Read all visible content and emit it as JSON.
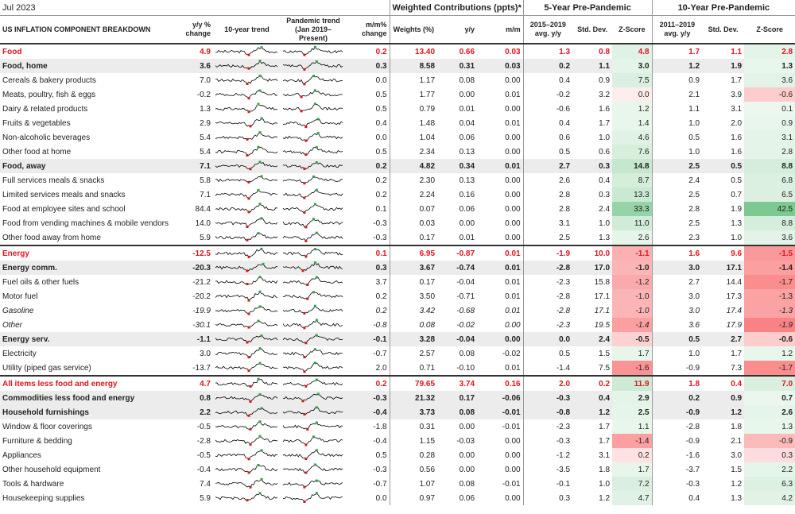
{
  "title": "Jul 2023",
  "groups": {
    "weighted": "Weighted Contributions (ppts)*",
    "five_year": "5-Year Pre-Pandemic",
    "ten_year": "10-Year Pre-Pandemic"
  },
  "headers": {
    "component": "US INFLATION COMPONENT BREAKDOWN",
    "yy": "y/y % change",
    "trend10": "10-year trend",
    "pandemic": "Pandemic trend (Jan 2019–Present)",
    "mm": "m/m% change",
    "weights": "Weights (%)",
    "contrib_yy": "y/y",
    "contrib_mm": "m/m",
    "avg5": "2015–2019 avg. y/y",
    "sd5": "Std. Dev.",
    "z5": "Z-Score",
    "avg10": "2011–2019 avg. y/y",
    "sd10": "Std. Dev.",
    "z10": "Z-Score"
  },
  "rows": [
    {
      "label": "Food",
      "style": "red",
      "yy": "4.9",
      "mm": "0.2",
      "wt": "13.40",
      "cy": "0.66",
      "cm": "0.03",
      "avg5": "1.3",
      "sd5": "0.8",
      "z5": "4.8",
      "avg10": "1.7",
      "sd10": "1.1",
      "z10": "2.8",
      "zs5": "pos",
      "zs10": "pos"
    },
    {
      "label": "Food, home",
      "style": "bold grey",
      "yy": "3.6",
      "mm": "0.3",
      "wt": "8.58",
      "cy": "0.31",
      "cm": "0.03",
      "avg5": "0.2",
      "sd5": "1.1",
      "z5": "3.0",
      "avg10": "1.2",
      "sd10": "1.9",
      "z10": "1.3",
      "zs5": "pos",
      "zs10": "pos"
    },
    {
      "label": "Cereals & bakery products",
      "style": "",
      "yy": "7.0",
      "mm": "0.0",
      "wt": "1.17",
      "cy": "0.08",
      "cm": "0.00",
      "avg5": "0.4",
      "sd5": "0.9",
      "z5": "7.5",
      "avg10": "0.9",
      "sd10": "1.7",
      "z10": "3.6",
      "zs5": "pos",
      "zs10": "pos"
    },
    {
      "label": "Meats, poultry, fish & eggs",
      "style": "",
      "yy": "-0.2",
      "mm": "0.5",
      "wt": "1.77",
      "cy": "0.00",
      "cm": "0.01",
      "avg5": "-0.2",
      "sd5": "3.2",
      "z5": "0.0",
      "avg10": "2.1",
      "sd10": "3.9",
      "z10": "-0.6",
      "zs5": "neg",
      "zs10": "neg"
    },
    {
      "label": "Dairy & related products",
      "style": "",
      "yy": "1.3",
      "mm": "0.5",
      "wt": "0.79",
      "cy": "0.01",
      "cm": "0.00",
      "avg5": "-0.6",
      "sd5": "1.6",
      "z5": "1.2",
      "avg10": "1.1",
      "sd10": "3.1",
      "z10": "0.1",
      "zs5": "pos",
      "zs10": "pos"
    },
    {
      "label": "Fruits & vegetables",
      "style": "",
      "yy": "2.9",
      "mm": "0.4",
      "wt": "1.48",
      "cy": "0.04",
      "cm": "0.01",
      "avg5": "0.4",
      "sd5": "1.7",
      "z5": "1.4",
      "avg10": "1.0",
      "sd10": "2.0",
      "z10": "0.9",
      "zs5": "pos",
      "zs10": "pos"
    },
    {
      "label": "Non-alcoholic beverages",
      "style": "",
      "yy": "5.4",
      "mm": "0.0",
      "wt": "1.04",
      "cy": "0.06",
      "cm": "0.00",
      "avg5": "0.6",
      "sd5": "1.0",
      "z5": "4.6",
      "avg10": "0.5",
      "sd10": "1.6",
      "z10": "3.1",
      "zs5": "pos",
      "zs10": "pos"
    },
    {
      "label": "Other food at home",
      "style": "",
      "yy": "5.4",
      "mm": "0.5",
      "wt": "2.34",
      "cy": "0.13",
      "cm": "0.00",
      "avg5": "0.5",
      "sd5": "0.6",
      "z5": "7.6",
      "avg10": "1.0",
      "sd10": "1.6",
      "z10": "2.8",
      "zs5": "pos",
      "zs10": "pos"
    },
    {
      "label": "Food, away",
      "style": "bold grey",
      "yy": "7.1",
      "mm": "0.2",
      "wt": "4.82",
      "cy": "0.34",
      "cm": "0.01",
      "avg5": "2.7",
      "sd5": "0.3",
      "z5": "14.8",
      "avg10": "2.5",
      "sd10": "0.5",
      "z10": "8.8",
      "zs5": "pos",
      "zs10": "pos"
    },
    {
      "label": "Full services meals & snacks",
      "style": "",
      "yy": "5.8",
      "mm": "0.2",
      "wt": "2.30",
      "cy": "0.13",
      "cm": "0.00",
      "avg5": "2.6",
      "sd5": "0.4",
      "z5": "8.7",
      "avg10": "2.4",
      "sd10": "0.5",
      "z10": "6.8",
      "zs5": "pos",
      "zs10": "pos"
    },
    {
      "label": "Limited services meals and snacks",
      "style": "",
      "yy": "7.1",
      "mm": "0.2",
      "wt": "2.24",
      "cy": "0.16",
      "cm": "0.00",
      "avg5": "2.8",
      "sd5": "0.3",
      "z5": "13.3",
      "avg10": "2.5",
      "sd10": "0.7",
      "z10": "6.5",
      "zs5": "pos",
      "zs10": "pos"
    },
    {
      "label": "Food at employee sites and school",
      "style": "",
      "yy": "84.4",
      "mm": "0.1",
      "wt": "0.07",
      "cy": "0.06",
      "cm": "0.00",
      "avg5": "2.8",
      "sd5": "2.4",
      "z5": "33.3",
      "avg10": "2.8",
      "sd10": "1.9",
      "z10": "42.5",
      "zs5": "pos",
      "zs10": "pos"
    },
    {
      "label": "Food from vending machines & mobile vendors",
      "style": "",
      "yy": "14.0",
      "mm": "-0.3",
      "wt": "0.03",
      "cy": "0.00",
      "cm": "0.00",
      "avg5": "3.1",
      "sd5": "1.0",
      "z5": "11.0",
      "avg10": "2.5",
      "sd10": "1.3",
      "z10": "8.8",
      "zs5": "pos",
      "zs10": "pos"
    },
    {
      "label": "Other food away from home",
      "style": "",
      "yy": "5.9",
      "mm": "-0.3",
      "wt": "0.17",
      "cy": "0.01",
      "cm": "0.00",
      "avg5": "2.5",
      "sd5": "1.3",
      "z5": "2.6",
      "avg10": "2.3",
      "sd10": "1.0",
      "z10": "3.6",
      "zs5": "pos",
      "zs10": "pos"
    },
    {
      "label": "Energy",
      "style": "red sec",
      "yy": "-12.5",
      "mm": "0.1",
      "wt": "6.95",
      "cy": "-0.87",
      "cm": "0.01",
      "avg5": "-1.9",
      "sd5": "10.0",
      "z5": "-1.1",
      "avg10": "1.6",
      "sd10": "9.6",
      "z10": "-1.5",
      "zs5": "neg",
      "zs10": "neg"
    },
    {
      "label": "Energy comm.",
      "style": "bold grey",
      "yy": "-20.3",
      "mm": "0.3",
      "wt": "3.67",
      "cy": "-0.74",
      "cm": "0.01",
      "avg5": "-2.8",
      "sd5": "17.0",
      "z5": "-1.0",
      "avg10": "3.0",
      "sd10": "17.1",
      "z10": "-1.4",
      "zs5": "neg",
      "zs10": "neg"
    },
    {
      "label": "Fuel oils & other fuels",
      "style": "",
      "yy": "-21.2",
      "mm": "3.7",
      "wt": "0.17",
      "cy": "-0.04",
      "cm": "0.01",
      "avg5": "-2.3",
      "sd5": "15.8",
      "z5": "-1.2",
      "avg10": "2.7",
      "sd10": "14.4",
      "z10": "-1.7",
      "zs5": "neg",
      "zs10": "neg"
    },
    {
      "label": "Motor fuel",
      "style": "",
      "yy": "-20.2",
      "mm": "0.2",
      "wt": "3.50",
      "cy": "-0.71",
      "cm": "0.01",
      "avg5": "-2.8",
      "sd5": "17.1",
      "z5": "-1.0",
      "avg10": "3.0",
      "sd10": "17.3",
      "z10": "-1.3",
      "zs5": "neg",
      "zs10": "neg"
    },
    {
      "label": "Gasoline",
      "style": "italic",
      "yy": "-19.9",
      "mm": "0.2",
      "wt": "3.42",
      "cy": "-0.68",
      "cm": "0.01",
      "avg5": "-2.8",
      "sd5": "17.1",
      "z5": "-1.0",
      "avg10": "3.0",
      "sd10": "17.4",
      "z10": "-1.3",
      "zs5": "neg",
      "zs10": "neg"
    },
    {
      "label": "Other",
      "style": "italic",
      "yy": "-30.1",
      "mm": "-0.8",
      "wt": "0.08",
      "cy": "-0.02",
      "cm": "0.00",
      "avg5": "-2.3",
      "sd5": "19.5",
      "z5": "-1.4",
      "avg10": "3.6",
      "sd10": "17.9",
      "z10": "-1.9",
      "zs5": "neg",
      "zs10": "neg"
    },
    {
      "label": "Energy serv.",
      "style": "bold grey",
      "yy": "-1.1",
      "mm": "-0.1",
      "wt": "3.28",
      "cy": "-0.04",
      "cm": "0.00",
      "avg5": "0.0",
      "sd5": "2.4",
      "z5": "-0.5",
      "avg10": "0.5",
      "sd10": "2.7",
      "z10": "-0.6",
      "zs5": "neg",
      "zs10": "neg"
    },
    {
      "label": "Electricity",
      "style": "",
      "yy": "3.0",
      "mm": "-0.7",
      "wt": "2.57",
      "cy": "0.08",
      "cm": "-0.02",
      "avg5": "0.5",
      "sd5": "1.5",
      "z5": "1.7",
      "avg10": "1.0",
      "sd10": "1.7",
      "z10": "1.2",
      "zs5": "pos",
      "zs10": "pos"
    },
    {
      "label": "Utility (piped gas service)",
      "style": "",
      "yy": "-13.7",
      "mm": "2.0",
      "wt": "0.71",
      "cy": "-0.10",
      "cm": "0.01",
      "avg5": "-1.4",
      "sd5": "7.5",
      "z5": "-1.6",
      "avg10": "-0.9",
      "sd10": "7.3",
      "z10": "-1.7",
      "zs5": "neg",
      "zs10": "neg"
    },
    {
      "label": "All items less food and energy",
      "style": "red sec",
      "yy": "4.7",
      "mm": "0.2",
      "wt": "79.65",
      "cy": "3.74",
      "cm": "0.16",
      "avg5": "2.0",
      "sd5": "0.2",
      "z5": "11.9",
      "avg10": "1.8",
      "sd10": "0.4",
      "z10": "7.0",
      "zs5": "pos",
      "zs10": "pos"
    },
    {
      "label": "Commodities less food and energy",
      "style": "bold grey",
      "yy": "0.8",
      "mm": "-0.3",
      "wt": "21.32",
      "cy": "0.17",
      "cm": "-0.06",
      "avg5": "-0.3",
      "sd5": "0.4",
      "z5": "2.9",
      "avg10": "0.2",
      "sd10": "0.9",
      "z10": "0.7",
      "zs5": "pos",
      "zs10": "pos"
    },
    {
      "label": "Household furnishings",
      "style": "bold grey",
      "yy": "2.2",
      "mm": "-0.4",
      "wt": "3.73",
      "cy": "0.08",
      "cm": "-0.01",
      "avg5": "-0.8",
      "sd5": "1.2",
      "z5": "2.5",
      "avg10": "-0.9",
      "sd10": "1.2",
      "z10": "2.6",
      "zs5": "pos",
      "zs10": "pos"
    },
    {
      "label": "Window & floor coverings",
      "style": "",
      "yy": "-0.5",
      "mm": "-1.8",
      "wt": "0.31",
      "cy": "0.00",
      "cm": "-0.01",
      "avg5": "-2.3",
      "sd5": "1.7",
      "z5": "1.1",
      "avg10": "-2.8",
      "sd10": "1.8",
      "z10": "1.3",
      "zs5": "pos",
      "zs10": "pos"
    },
    {
      "label": "Furniture & bedding",
      "style": "",
      "yy": "-2.8",
      "mm": "-0.4",
      "wt": "1.15",
      "cy": "-0.03",
      "cm": "0.00",
      "avg5": "-0.3",
      "sd5": "1.7",
      "z5": "-1.4",
      "avg10": "-0.9",
      "sd10": "2.1",
      "z10": "-0.9",
      "zs5": "neg",
      "zs10": "neg"
    },
    {
      "label": "Appliances",
      "style": "",
      "yy": "-0.5",
      "mm": "0.5",
      "wt": "0.28",
      "cy": "0.00",
      "cm": "0.00",
      "avg5": "-1.2",
      "sd5": "3.1",
      "z5": "0.2",
      "avg10": "-1.6",
      "sd10": "3.0",
      "z10": "0.3",
      "zs5": "neg",
      "zs10": "neg"
    },
    {
      "label": "Other household equipment",
      "style": "",
      "yy": "-0.4",
      "mm": "-0.3",
      "wt": "0.56",
      "cy": "0.00",
      "cm": "0.00",
      "avg5": "-3.5",
      "sd5": "1.8",
      "z5": "1.7",
      "avg10": "-3.7",
      "sd10": "1.5",
      "z10": "2.2",
      "zs5": "pos",
      "zs10": "pos"
    },
    {
      "label": "Tools & hardware",
      "style": "",
      "yy": "7.4",
      "mm": "-0.7",
      "wt": "1.07",
      "cy": "0.08",
      "cm": "-0.01",
      "avg5": "-0.1",
      "sd5": "1.0",
      "z5": "7.2",
      "avg10": "-0.3",
      "sd10": "1.2",
      "z10": "6.3",
      "zs5": "pos",
      "zs10": "pos"
    },
    {
      "label": "Housekeeping supplies",
      "style": "",
      "yy": "5.9",
      "mm": "0.0",
      "wt": "0.97",
      "cy": "0.06",
      "cm": "0.00",
      "avg5": "0.3",
      "sd5": "1.2",
      "z5": "4.7",
      "avg10": "0.4",
      "sd10": "1.3",
      "z10": "4.2",
      "zs5": "pos",
      "zs10": "pos"
    }
  ],
  "colors": {
    "accent_red": "#e0141e",
    "z_positive": "#63be7b",
    "z_negative": "#f8696b",
    "sparkline": "#000000",
    "spark_high": "#2e9e48",
    "spark_low": "#d01818"
  }
}
